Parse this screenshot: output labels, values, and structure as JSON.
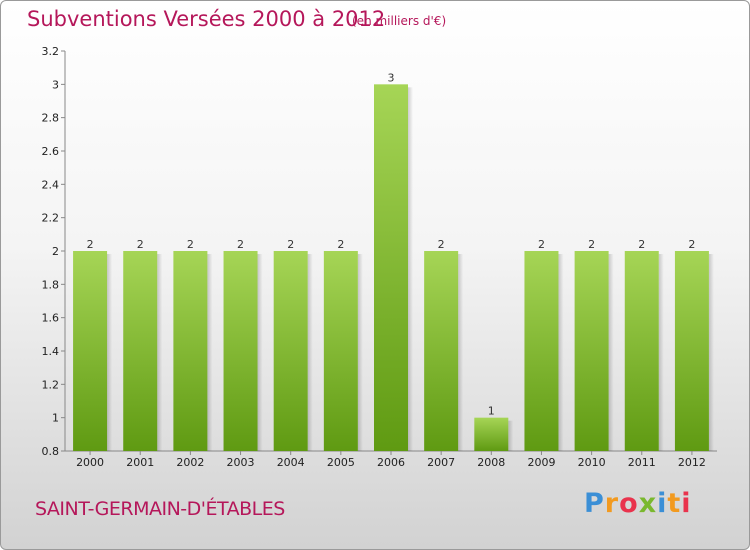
{
  "header": {
    "title": "Subventions Versées 2000 à 2012",
    "subtitle": "(en milliers d'€)"
  },
  "footer": {
    "city": "SAINT-GERMAIN-D'ÉTABLES",
    "logo": [
      "P",
      "r",
      "o",
      "x",
      "i",
      "t",
      "i"
    ],
    "logo_colors": [
      "#3b8fd6",
      "#f29a1f",
      "#e9334d",
      "#7ab82e",
      "#3b8fd6",
      "#f29a1f",
      "#e9334d"
    ]
  },
  "colors": {
    "bar_light": "#a6d556",
    "bar_dark": "#5f9a12",
    "accent": "#b5175a"
  },
  "chart_data": {
    "type": "bar",
    "categories": [
      "2000",
      "2001",
      "2002",
      "2003",
      "2004",
      "2005",
      "2006",
      "2007",
      "2008",
      "2009",
      "2010",
      "2011",
      "2012"
    ],
    "values": [
      2,
      2,
      2,
      2,
      2,
      2,
      3,
      2,
      1,
      2,
      2,
      2,
      2
    ],
    "data_labels": [
      "2",
      "2",
      "2",
      "2",
      "2",
      "2",
      "3",
      "2",
      "1",
      "2",
      "2",
      "2",
      "2"
    ],
    "ylim": [
      0.8,
      3.2
    ],
    "yticks": [
      0.8,
      1,
      1.2,
      1.4,
      1.6,
      1.8,
      2,
      2.2,
      2.4,
      2.6,
      2.8,
      3,
      3.2
    ],
    "ytick_labels": [
      "0.8",
      "1",
      "1.2",
      "1.4",
      "1.6",
      "1.8",
      "2",
      "2.2",
      "2.4",
      "2.6",
      "2.8",
      "3",
      "3.2"
    ],
    "grid": false,
    "legend": "none"
  }
}
